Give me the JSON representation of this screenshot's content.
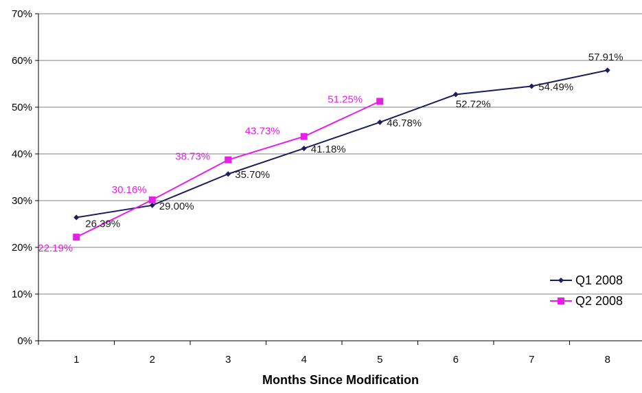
{
  "colors": {
    "q1": "#1c1c5e",
    "q2": "#e61ee6",
    "grid": "#808080",
    "axis": "#000000",
    "background": "#ffffff"
  },
  "chart_data": {
    "type": "line",
    "xlabel": "Months Since Modification",
    "ylabel": "",
    "x": [
      1,
      2,
      3,
      4,
      5,
      6,
      7,
      8
    ],
    "ylim": [
      0,
      70
    ],
    "yticks": [
      0,
      10,
      20,
      30,
      40,
      50,
      60,
      70
    ],
    "ytick_labels": [
      "0%",
      "10%",
      "20%",
      "30%",
      "40%",
      "50%",
      "60%",
      "70%"
    ],
    "xtick_labels": [
      "1",
      "2",
      "3",
      "4",
      "5",
      "6",
      "7",
      "8"
    ],
    "grid": "horizontal",
    "legend_position": "right",
    "series": [
      {
        "name": "Q1 2008",
        "marker": "diamond",
        "x": [
          1,
          2,
          3,
          4,
          5,
          6,
          7,
          8
        ],
        "values": [
          26.39,
          29.0,
          35.7,
          41.18,
          46.78,
          52.72,
          54.49,
          57.91
        ],
        "labels": [
          "26.39%",
          "29.00%",
          "35.70%",
          "41.18%",
          "46.78%",
          "52.72%",
          "54.49%",
          "57.91%"
        ]
      },
      {
        "name": "Q2 2008",
        "marker": "square",
        "x": [
          1,
          2,
          3,
          4,
          5
        ],
        "values": [
          22.19,
          30.16,
          38.73,
          43.73,
          51.25
        ],
        "labels": [
          "22.19%",
          "30.16%",
          "38.73%",
          "43.73%",
          "51.25%"
        ]
      }
    ]
  }
}
